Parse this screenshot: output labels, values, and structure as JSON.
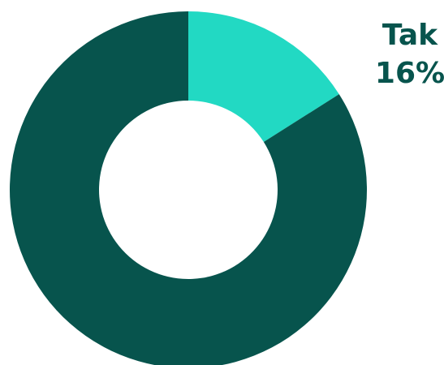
{
  "chart_data": {
    "type": "pie",
    "donut": true,
    "categories": [
      "Tak",
      ""
    ],
    "values": [
      16,
      84
    ],
    "data_labels": [
      {
        "name": "Tak",
        "value": "16%"
      }
    ],
    "colors": [
      "#22d9c3",
      "#07544d"
    ],
    "label_color": "#07544d",
    "legend": "none"
  }
}
